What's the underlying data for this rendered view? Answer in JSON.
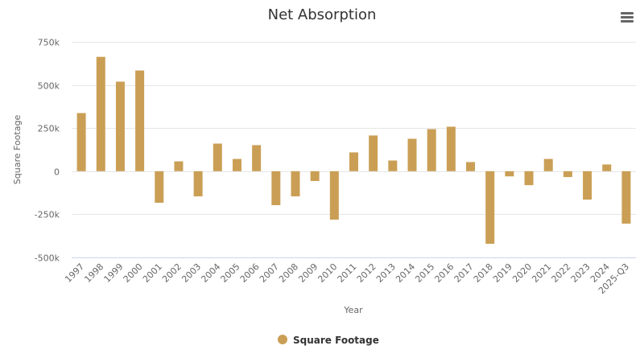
{
  "chart_data": {
    "type": "bar",
    "title": "Net Absorption",
    "xlabel": "Year",
    "ylabel": "Square Footage",
    "ylim": [
      -500000,
      750000
    ],
    "yticks": [
      -500000,
      -250000,
      0,
      250000,
      500000,
      750000
    ],
    "ytick_labels": [
      "-500k",
      "-250k",
      "0",
      "250k",
      "500k",
      "750k"
    ],
    "grid": true,
    "legend": "bottom-center",
    "categories": [
      "1997",
      "1998",
      "1999",
      "2000",
      "2001",
      "2002",
      "2003",
      "2004",
      "2005",
      "2006",
      "2007",
      "2008",
      "2009",
      "2010",
      "2011",
      "2012",
      "2013",
      "2014",
      "2015",
      "2016",
      "2017",
      "2018",
      "2019",
      "2020",
      "2021",
      "2022",
      "2023",
      "2024",
      "2025-Q3"
    ],
    "series": [
      {
        "name": "Square Footage",
        "color": "#CA9F55",
        "values": [
          337000,
          663000,
          519000,
          584000,
          -183000,
          57000,
          -146000,
          160000,
          71000,
          151000,
          -197000,
          -146000,
          -57000,
          -281000,
          109000,
          207000,
          62000,
          188000,
          244000,
          258000,
          53000,
          -421000,
          -30000,
          -81000,
          71000,
          -34000,
          -165000,
          39000,
          -304000
        ]
      }
    ]
  },
  "menu": {
    "icon": "hamburger-menu-icon"
  }
}
